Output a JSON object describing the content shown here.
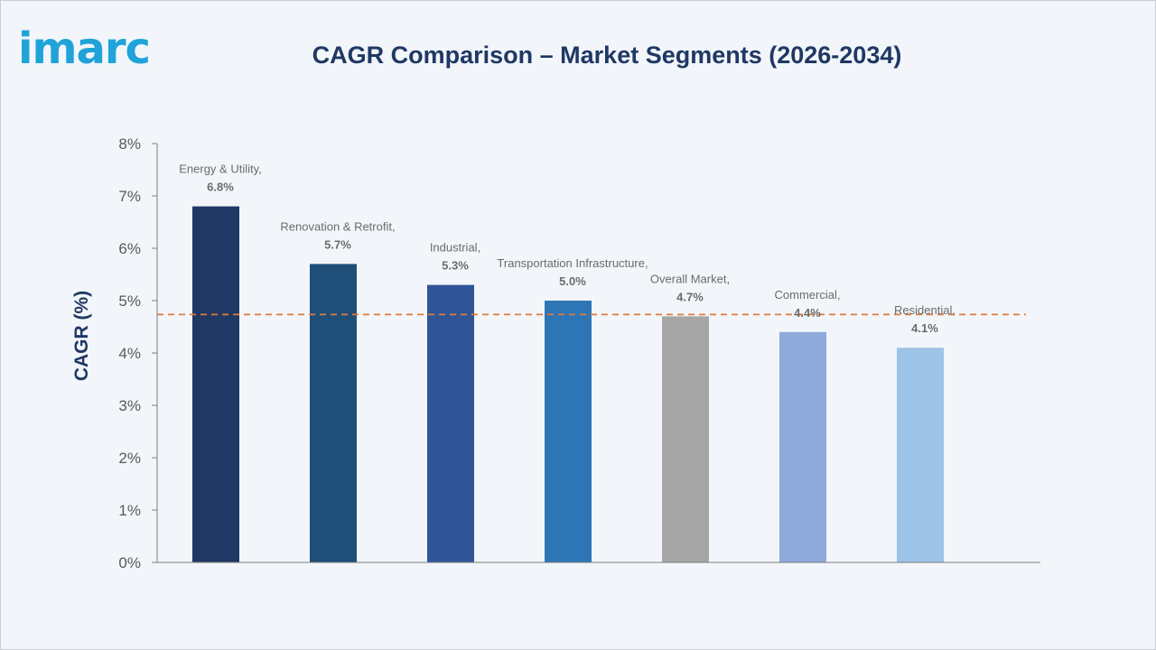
{
  "brand": {
    "logo_text": "imarc"
  },
  "header": {
    "title": "CAGR Comparison – Market Segments (2026-2034)"
  },
  "colors": {
    "brand": "#1fa3d9",
    "title": "#1f3864",
    "axis_label": "#1f3864",
    "tick_text": "#595959",
    "data_label": "#6b6b6b",
    "reference_line": "#e07b39"
  },
  "chart_data": {
    "type": "bar",
    "title": "CAGR Comparison – Market Segments (2026-2034)",
    "xlabel": "",
    "ylabel": "CAGR (%)",
    "ylim": [
      0,
      8
    ],
    "yticks": [
      "0%",
      "1%",
      "2%",
      "3%",
      "4%",
      "5%",
      "6%",
      "7%",
      "8%"
    ],
    "grid": false,
    "legend": "none",
    "reference_line": {
      "value": 4.7,
      "style": "dashed"
    },
    "categories": [
      "Energy & Utility",
      "Renovation & Retrofit",
      "Industrial",
      "Transportation Infrastructure",
      "Overall Market",
      "Commercial",
      "Residential"
    ],
    "values": [
      6.8,
      5.7,
      5.3,
      5.0,
      4.7,
      4.4,
      4.1
    ],
    "data_labels": [
      "6.8%",
      "5.7%",
      "5.3%",
      "5.0%",
      "4.7%",
      "4.4%",
      "4.1%"
    ],
    "bar_colors": [
      "#203864",
      "#1f4e79",
      "#2f5597",
      "#2e75b6",
      "#a6a6a6",
      "#8eaadb",
      "#9dc3e6"
    ]
  }
}
